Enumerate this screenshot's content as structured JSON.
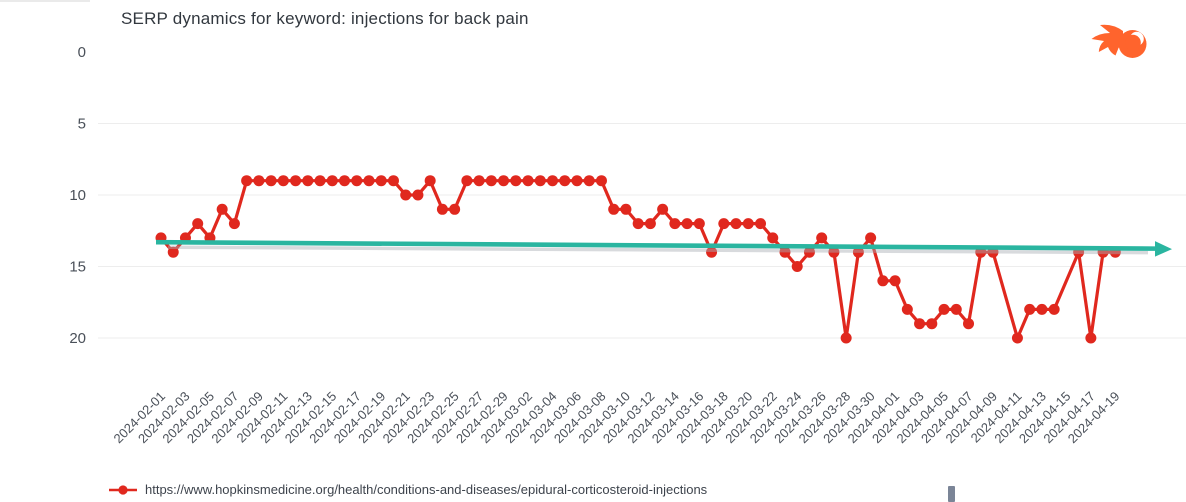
{
  "title": "SERP dynamics for keyword: injections for back pain",
  "logo": {
    "label": "Semrush",
    "color": "#ff642d"
  },
  "legend": {
    "items": [
      {
        "label": "https://www.hopkinsmedicine.org/health/conditions-and-diseases/epidural-corticosteroid-injections",
        "color": "#e0281e"
      }
    ]
  },
  "colors": {
    "series_red": "#e0281e",
    "trend_teal": "#2ab5a0",
    "trend_shadow": "#a9aeb6",
    "grid": "#ededed",
    "title_text": "#32383f",
    "axis_text": "#4a5059",
    "scrollbar": "#7b8597"
  },
  "chart_data": {
    "type": "line",
    "title": "SERP dynamics for keyword: injections for back pain",
    "xlabel": "",
    "ylabel": "",
    "y_axis": {
      "inverted": true,
      "ticks": [
        0,
        5,
        10,
        15,
        20
      ],
      "range": [
        0,
        21
      ],
      "gridlines_at": [
        5,
        10,
        15,
        20
      ]
    },
    "grid": "horizontal",
    "legend_position": "bottom",
    "x_tick_labels": [
      "2024-02-01",
      "2024-02-03",
      "2024-02-05",
      "2024-02-07",
      "2024-02-09",
      "2024-02-11",
      "2024-02-13",
      "2024-02-15",
      "2024-02-17",
      "2024-02-19",
      "2024-02-21",
      "2024-02-23",
      "2024-02-25",
      "2024-02-27",
      "2024-02-29",
      "2024-03-02",
      "2024-03-04",
      "2024-03-06",
      "2024-03-08",
      "2024-03-10",
      "2024-03-12",
      "2024-03-14",
      "2024-03-16",
      "2024-03-18",
      "2024-03-20",
      "2024-03-22",
      "2024-03-24",
      "2024-03-26",
      "2024-03-28",
      "2024-03-30",
      "2024-04-01",
      "2024-04-03",
      "2024-04-05",
      "2024-04-07",
      "2024-04-09",
      "2024-04-11",
      "2024-04-13",
      "2024-04-15",
      "2024-04-17",
      "2024-04-19"
    ],
    "x": [
      "2024-02-01",
      "2024-02-02",
      "2024-02-03",
      "2024-02-04",
      "2024-02-05",
      "2024-02-06",
      "2024-02-07",
      "2024-02-08",
      "2024-02-09",
      "2024-02-10",
      "2024-02-11",
      "2024-02-12",
      "2024-02-13",
      "2024-02-14",
      "2024-02-15",
      "2024-02-16",
      "2024-02-17",
      "2024-02-18",
      "2024-02-19",
      "2024-02-20",
      "2024-02-21",
      "2024-02-22",
      "2024-02-23",
      "2024-02-24",
      "2024-02-25",
      "2024-02-26",
      "2024-02-27",
      "2024-02-28",
      "2024-02-29",
      "2024-03-01",
      "2024-03-02",
      "2024-03-03",
      "2024-03-04",
      "2024-03-05",
      "2024-03-06",
      "2024-03-07",
      "2024-03-08",
      "2024-03-09",
      "2024-03-10",
      "2024-03-11",
      "2024-03-12",
      "2024-03-13",
      "2024-03-14",
      "2024-03-15",
      "2024-03-16",
      "2024-03-17",
      "2024-03-18",
      "2024-03-19",
      "2024-03-20",
      "2024-03-21",
      "2024-03-22",
      "2024-03-23",
      "2024-03-24",
      "2024-03-25",
      "2024-03-26",
      "2024-03-27",
      "2024-03-28",
      "2024-03-29",
      "2024-03-30",
      "2024-03-31",
      "2024-04-01",
      "2024-04-02",
      "2024-04-03",
      "2024-04-04",
      "2024-04-05",
      "2024-04-06",
      "2024-04-07",
      "2024-04-08",
      "2024-04-09",
      "2024-04-10",
      "2024-04-11",
      "2024-04-12",
      "2024-04-13",
      "2024-04-14",
      "2024-04-15",
      "2024-04-16",
      "2024-04-17",
      "2024-04-18",
      "2024-04-19"
    ],
    "series": [
      {
        "name": "https://www.hopkinsmedicine.org/health/conditions-and-diseases/epidural-corticosteroid-injections",
        "color": "#e0281e",
        "values": [
          13,
          14,
          13,
          12,
          13,
          11,
          12,
          9,
          9,
          9,
          9,
          9,
          9,
          9,
          9,
          9,
          9,
          9,
          9,
          9,
          10,
          10,
          9,
          11,
          11,
          9,
          9,
          9,
          9,
          9,
          9,
          9,
          9,
          9,
          9,
          9,
          9,
          11,
          11,
          12,
          12,
          11,
          12,
          12,
          12,
          14,
          12,
          12,
          12,
          12,
          13,
          14,
          15,
          14,
          13,
          14,
          20,
          14,
          13,
          16,
          16,
          18,
          19,
          19,
          18,
          18,
          19,
          14,
          14,
          null,
          20,
          18,
          18,
          18,
          null,
          14,
          20,
          14,
          14
        ]
      }
    ],
    "trend_line": {
      "style": "arrow",
      "color": "#2ab5a0",
      "start_rank": 13.3,
      "end_rank": 13.75
    }
  }
}
